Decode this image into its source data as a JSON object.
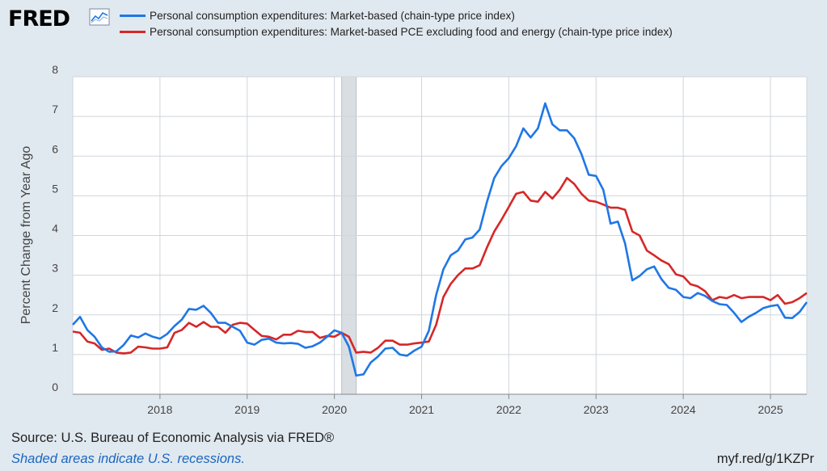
{
  "brand": {
    "logo_text": "FRED",
    "logo_icon": "line-chart-icon"
  },
  "footer": {
    "source": "Source: U.S. Bureau of Economic Analysis via FRED®",
    "recession_note": "Shaded areas indicate U.S. recessions.",
    "short_url": "myf.red/g/1KZPr"
  },
  "colors": {
    "series_market": "#1f77e5",
    "series_core": "#d62728",
    "recession_shade": "#d9dee3",
    "background": "#e1e9f0",
    "plot_bg": "#ffffff",
    "grid": "#cfd5db"
  },
  "chart_data": {
    "type": "line",
    "title": "",
    "xlabel": "",
    "ylabel": "Percent Change from Year Ago",
    "ylim": [
      0,
      8
    ],
    "yticks": [
      0,
      1,
      2,
      3,
      4,
      5,
      6,
      7,
      8
    ],
    "xlim": [
      "2017-01",
      "2025-06"
    ],
    "xticks": [
      "2018",
      "2019",
      "2020",
      "2021",
      "2022",
      "2023",
      "2024",
      "2025"
    ],
    "grid": true,
    "legend_position": "top",
    "recessions": [
      {
        "start": "2020-02",
        "end": "2020-04"
      }
    ],
    "x": [
      "2017-01",
      "2017-02",
      "2017-03",
      "2017-04",
      "2017-05",
      "2017-06",
      "2017-07",
      "2017-08",
      "2017-09",
      "2017-10",
      "2017-11",
      "2017-12",
      "2018-01",
      "2018-02",
      "2018-03",
      "2018-04",
      "2018-05",
      "2018-06",
      "2018-07",
      "2018-08",
      "2018-09",
      "2018-10",
      "2018-11",
      "2018-12",
      "2019-01",
      "2019-02",
      "2019-03",
      "2019-04",
      "2019-05",
      "2019-06",
      "2019-07",
      "2019-08",
      "2019-09",
      "2019-10",
      "2019-11",
      "2019-12",
      "2020-01",
      "2020-02",
      "2020-03",
      "2020-04",
      "2020-05",
      "2020-06",
      "2020-07",
      "2020-08",
      "2020-09",
      "2020-10",
      "2020-11",
      "2020-12",
      "2021-01",
      "2021-02",
      "2021-03",
      "2021-04",
      "2021-05",
      "2021-06",
      "2021-07",
      "2021-08",
      "2021-09",
      "2021-10",
      "2021-11",
      "2021-12",
      "2022-01",
      "2022-02",
      "2022-03",
      "2022-04",
      "2022-05",
      "2022-06",
      "2022-07",
      "2022-08",
      "2022-09",
      "2022-10",
      "2022-11",
      "2022-12",
      "2023-01",
      "2023-02",
      "2023-03",
      "2023-04",
      "2023-05",
      "2023-06",
      "2023-07",
      "2023-08",
      "2023-09",
      "2023-10",
      "2023-11",
      "2023-12",
      "2024-01",
      "2024-02",
      "2024-03",
      "2024-04",
      "2024-05",
      "2024-06",
      "2024-07",
      "2024-08",
      "2024-09",
      "2024-10",
      "2024-11",
      "2024-12",
      "2025-01",
      "2025-02",
      "2025-03",
      "2025-04",
      "2025-05",
      "2025-06"
    ],
    "series": [
      {
        "name": "Personal consumption expenditures: Market-based (chain-type price index)",
        "color": "#1f77e5",
        "values": [
          1.75,
          1.95,
          1.62,
          1.45,
          1.18,
          1.07,
          1.08,
          1.24,
          1.48,
          1.43,
          1.53,
          1.45,
          1.4,
          1.52,
          1.72,
          1.88,
          2.15,
          2.13,
          2.23,
          2.05,
          1.8,
          1.8,
          1.7,
          1.6,
          1.3,
          1.25,
          1.37,
          1.4,
          1.3,
          1.28,
          1.29,
          1.27,
          1.17,
          1.21,
          1.3,
          1.45,
          1.61,
          1.55,
          1.2,
          0.47,
          0.5,
          0.8,
          0.95,
          1.15,
          1.17,
          1.0,
          0.97,
          1.1,
          1.2,
          1.6,
          2.5,
          3.15,
          3.5,
          3.62,
          3.9,
          3.95,
          4.15,
          4.85,
          5.45,
          5.75,
          5.95,
          6.25,
          6.7,
          6.47,
          6.7,
          7.33,
          6.8,
          6.65,
          6.65,
          6.45,
          6.05,
          5.53,
          5.5,
          5.15,
          4.3,
          4.35,
          3.8,
          2.87,
          2.98,
          3.15,
          3.22,
          2.9,
          2.68,
          2.63,
          2.45,
          2.42,
          2.55,
          2.48,
          2.35,
          2.27,
          2.25,
          2.05,
          1.82,
          1.95,
          2.05,
          2.17,
          2.22,
          2.25,
          1.93,
          1.92,
          2.07,
          2.32
        ]
      },
      {
        "name": "Personal consumption expenditures: Market-based PCE excluding food and energy (chain-type price index)",
        "color": "#d62728",
        "values": [
          1.58,
          1.55,
          1.33,
          1.28,
          1.12,
          1.15,
          1.05,
          1.03,
          1.05,
          1.2,
          1.18,
          1.15,
          1.15,
          1.18,
          1.55,
          1.62,
          1.8,
          1.7,
          1.82,
          1.7,
          1.7,
          1.55,
          1.75,
          1.8,
          1.78,
          1.62,
          1.47,
          1.45,
          1.38,
          1.5,
          1.5,
          1.6,
          1.57,
          1.57,
          1.42,
          1.47,
          1.45,
          1.55,
          1.45,
          1.05,
          1.07,
          1.05,
          1.17,
          1.35,
          1.35,
          1.25,
          1.25,
          1.28,
          1.3,
          1.33,
          1.75,
          2.45,
          2.78,
          3.0,
          3.17,
          3.17,
          3.25,
          3.7,
          4.1,
          4.4,
          4.72,
          5.05,
          5.1,
          4.88,
          4.85,
          5.1,
          4.93,
          5.15,
          5.45,
          5.3,
          5.05,
          4.88,
          4.85,
          4.78,
          4.7,
          4.7,
          4.65,
          4.1,
          4.0,
          3.62,
          3.5,
          3.37,
          3.28,
          3.02,
          2.97,
          2.77,
          2.72,
          2.6,
          2.37,
          2.45,
          2.42,
          2.5,
          2.42,
          2.45,
          2.45,
          2.45,
          2.37,
          2.5,
          2.28,
          2.32,
          2.42,
          2.55
        ]
      }
    ]
  }
}
